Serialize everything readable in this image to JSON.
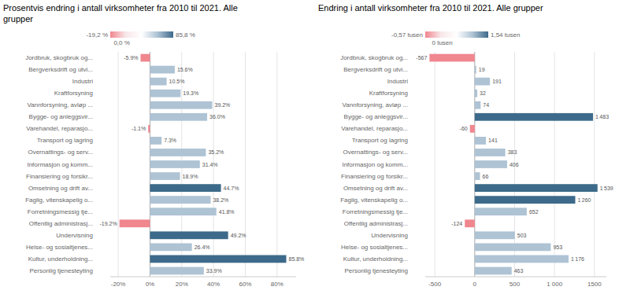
{
  "chart_data": [
    {
      "type": "bar",
      "orientation": "horizontal",
      "title": "Prosentvis endring i antall virksomheter fra 2010 til 2021. Alle\ngrupper",
      "categories": [
        "Jordbruk, skogbruk og...",
        "Bergverksdrift og utvi...",
        "Industri",
        "Kraftforsyning",
        "Vannforsyning, avløp ...",
        "Bygge- og anleggsvir...",
        "Varehandel, reparasjo...",
        "Transport og lagring",
        "Overnattings- og serv...",
        "Informasjon og komm...",
        "Finansiering og forsikr...",
        "Omsetning og drift av...",
        "Faglig, vitenskapelig o...",
        "Forretningsmessig tje...",
        "Offentlig administrasj...",
        "Undervisning",
        "Helse- og sosialtjenes...",
        "Kultur, underholdning...",
        "Personlig tjenesteyting"
      ],
      "values": [
        -5.9,
        15.6,
        10.5,
        19.3,
        39.2,
        36.0,
        -1.1,
        7.3,
        35.2,
        31.4,
        18.9,
        44.7,
        38.2,
        41.8,
        -19.2,
        49.2,
        26.4,
        85.8,
        33.9
      ],
      "value_labels": [
        "-5.9%",
        "15.6%",
        "10.5%",
        "19.3%",
        "39.2%",
        "36.0%",
        "-1.1%",
        "7.3%",
        "35.2%",
        "31.4%",
        "18.9%",
        "44.7%",
        "38.2%",
        "41.8%",
        "-19.2%",
        "49.2%",
        "26.4%",
        "85.8%",
        "33.9%"
      ],
      "colors": [
        "#f0868e",
        "#aec3d4",
        "#aec3d4",
        "#aec3d4",
        "#aec3d4",
        "#aec3d4",
        "#f0868e",
        "#aec3d4",
        "#aec3d4",
        "#aec3d4",
        "#aec3d4",
        "#3d6a8a",
        "#aec3d4",
        "#aec3d4",
        "#f0868e",
        "#3d6a8a",
        "#aec3d4",
        "#3d6a8a",
        "#aec3d4"
      ],
      "data_labels": true,
      "grid": true,
      "xlim": [
        -25,
        92
      ],
      "xticks": [
        {
          "value": -20,
          "label": "-20%"
        },
        {
          "value": 0,
          "label": "0%"
        },
        {
          "value": 20,
          "label": "20%"
        },
        {
          "value": 40,
          "label": "40%"
        },
        {
          "value": 60,
          "label": "60%"
        },
        {
          "value": 80,
          "label": "80%"
        }
      ],
      "colorbar": {
        "colors": [
          "#f0868e",
          "#f8e8ea",
          "#ffffff",
          "#aec3d4",
          "#3d6a8a"
        ],
        "lim": [
          -19.2,
          85.8
        ],
        "ticks": [
          {
            "value": -19.2,
            "label": "-19,2 %"
          },
          {
            "value": 0,
            "label": "0,0 %"
          },
          {
            "value": 85.8,
            "label": "85,8 %"
          }
        ]
      }
    },
    {
      "type": "bar",
      "orientation": "horizontal",
      "title": "Endring i antall virksomheter fra 2010 til 2021. Alle grupper",
      "categories": [
        "Jordbruk, skogbruk og...",
        "Bergverksdrift og utvi...",
        "Industri",
        "Kraftforsyning",
        "Vannforsyning, avløp ...",
        "Bygge- og anleggsvir...",
        "Varehandel, reparasjo...",
        "Transport og lagring",
        "Overnattings- og serv...",
        "Informasjon og komm...",
        "Finansiering og forsikr...",
        "Omsetning og drift av...",
        "Faglig, vitenskapelig o...",
        "Forretningsmessig tje...",
        "Offentlig administrasj...",
        "Undervisning",
        "Helse- og sosialtjenes...",
        "Kultur, underholdning...",
        "Personlig tjenesteyting"
      ],
      "values": [
        -567,
        19,
        191,
        32,
        74,
        1483,
        -60,
        141,
        383,
        406,
        66,
        1539,
        1260,
        652,
        -124,
        503,
        953,
        1176,
        463
      ],
      "value_labels": [
        "-567",
        "19",
        "191",
        "32",
        "74",
        "1 483",
        "-60",
        "141",
        "383",
        "406",
        "66",
        "1 539",
        "1 260",
        "652",
        "-124",
        "503",
        "953",
        "1 176",
        "463"
      ],
      "colors": [
        "#f0868e",
        "#aec3d4",
        "#aec3d4",
        "#aec3d4",
        "#aec3d4",
        "#3d6a8a",
        "#f0868e",
        "#aec3d4",
        "#aec3d4",
        "#aec3d4",
        "#aec3d4",
        "#3d6a8a",
        "#3d6a8a",
        "#aec3d4",
        "#f0868e",
        "#aec3d4",
        "#aec3d4",
        "#aec3d4",
        "#aec3d4"
      ],
      "data_labels": true,
      "grid": true,
      "xlim": [
        -620,
        1650
      ],
      "xticks": [
        -500,
        0,
        500,
        {
          "value": 1000,
          "label": "1 000"
        },
        1500
      ],
      "colorbar": {
        "colors": [
          "#f0868e",
          "#f8e8ea",
          "#ffffff",
          "#aec3d4",
          "#3d6a8a"
        ],
        "lim": [
          -570,
          1540
        ],
        "ticks": [
          {
            "value": -570,
            "label": "-0,57 tusen"
          },
          {
            "value": 0,
            "label": "0 tusen"
          },
          {
            "value": 1540,
            "label": "1,54 tusen"
          }
        ]
      }
    }
  ]
}
